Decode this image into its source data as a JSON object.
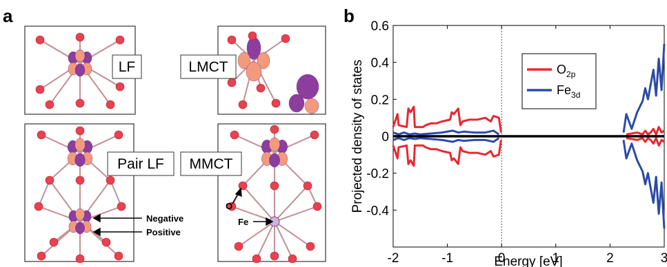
{
  "panel_a": {
    "letter": "a",
    "boxes": [
      {
        "label": "LF"
      },
      {
        "label": "LMCT"
      },
      {
        "label": "Pair LF"
      },
      {
        "label": "MMCT"
      }
    ],
    "annotations": {
      "negative": "Negative",
      "positive": "Positive",
      "o": "O",
      "fe": "Fe"
    },
    "colors": {
      "oxygen": "#e8414f",
      "lobe_purple": "#8c3d9e",
      "lobe_peach": "#f39a7c",
      "bond": "#b0b0b0"
    }
  },
  "chart_data": {
    "type": "line",
    "panel_letter": "b",
    "xlabel": "Energy [eV]",
    "ylabel": "Projected density of states",
    "xlim": [
      -2,
      3
    ],
    "ylim": [
      -0.6,
      0.6
    ],
    "xticks": [
      "-2",
      "-1",
      "0",
      "1",
      "2",
      "3"
    ],
    "yticks": [
      "0.6",
      "0.4",
      "0.2",
      "0",
      "-0.2",
      "-0.4"
    ],
    "vline_x": 0,
    "legend_position": "top-center",
    "series": [
      {
        "name_main": "O",
        "name_sub": "2p",
        "color": "#e8272f",
        "x": [
          -2,
          -1.92,
          -1.9,
          -1.75,
          -1.72,
          -1.68,
          -1.62,
          -1.6,
          -1.45,
          -1.4,
          -1.3,
          -1.2,
          -1.1,
          -0.95,
          -0.92,
          -0.88,
          -0.8,
          -0.76,
          -0.72,
          -0.6,
          -0.45,
          -0.3,
          -0.2,
          -0.15,
          -0.05,
          -0.01,
          2.3,
          2.5,
          2.6,
          2.65,
          2.7,
          2.75,
          2.8,
          2.85,
          2.9,
          2.95,
          3.0
        ],
        "y": [
          0.05,
          0.12,
          0.06,
          0.05,
          0.15,
          0.13,
          0.16,
          0.05,
          0.05,
          0.06,
          0.07,
          0.07,
          0.08,
          0.09,
          0.13,
          0.12,
          0.15,
          0.06,
          0.08,
          0.09,
          0.09,
          0.1,
          0.08,
          0.11,
          0.1,
          0.02,
          0.01,
          0.02,
          0.01,
          0.03,
          0.01,
          0.02,
          0.04,
          0.01,
          0.05,
          0.02,
          0.03
        ]
      },
      {
        "name_main": "Fe",
        "name_sub": "3d",
        "color": "#2b4ba8",
        "x": [
          -2,
          -1.9,
          -1.8,
          -1.7,
          -1.6,
          -1.5,
          -1.3,
          -1.1,
          -0.9,
          -0.8,
          -0.7,
          -0.5,
          -0.3,
          -0.15,
          -0.05,
          2.25,
          2.3,
          2.35,
          2.4,
          2.5,
          2.55,
          2.6,
          2.65,
          2.7,
          2.75,
          2.8,
          2.85,
          2.9,
          2.95,
          3.0
        ],
        "y": [
          0.02,
          0.01,
          0.02,
          0.01,
          0.015,
          0.01,
          0.015,
          0.02,
          0.03,
          0.02,
          0.025,
          0.02,
          0.02,
          0.03,
          0.01,
          0.02,
          0.12,
          0.08,
          0.04,
          0.13,
          0.16,
          0.19,
          0.26,
          0.2,
          0.28,
          0.36,
          0.22,
          0.42,
          0.25,
          0.5
        ]
      }
    ],
    "baseline_color": "#000000"
  }
}
